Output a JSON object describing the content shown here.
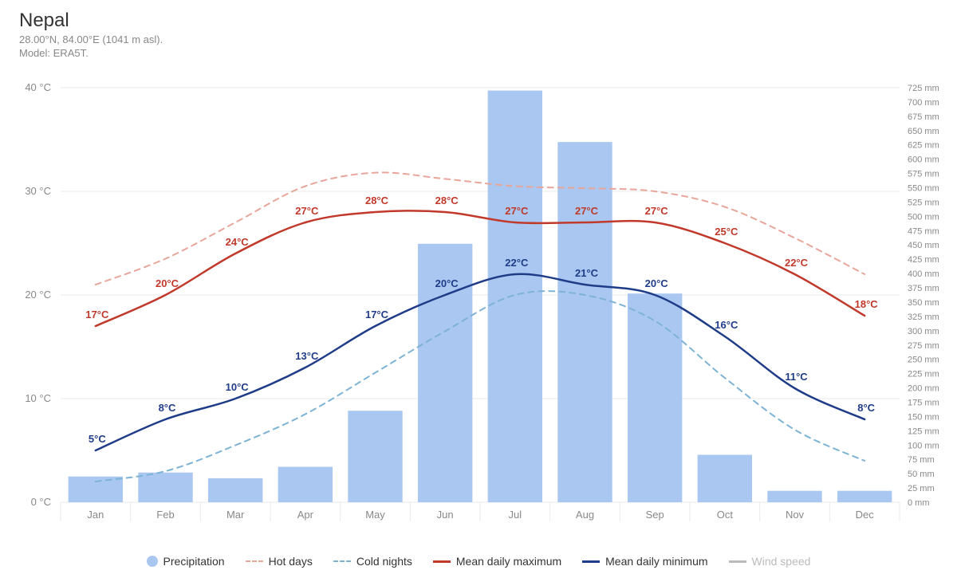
{
  "header": {
    "title": "Nepal",
    "subtitle1": "28.00°N, 84.00°E (1041 m asl).",
    "subtitle2": "Model: ERA5T."
  },
  "chart": {
    "type": "combo_bar_line",
    "months": [
      "Jan",
      "Feb",
      "Mar",
      "Apr",
      "May",
      "Jun",
      "Jul",
      "Aug",
      "Sep",
      "Oct",
      "Nov",
      "Dec"
    ],
    "left_axis": {
      "unit": "°C",
      "min": 0,
      "max": 40,
      "ticks": [
        0,
        10,
        20,
        30,
        40
      ],
      "labels": [
        "0 °C",
        "10 °C",
        "20 °C",
        "30 °C",
        "40 °C"
      ],
      "fontsize": 13,
      "color": "#888"
    },
    "right_axis": {
      "unit": "mm",
      "min": 0,
      "max": 725,
      "ticks": [
        0,
        25,
        50,
        75,
        100,
        125,
        150,
        175,
        200,
        225,
        250,
        275,
        300,
        325,
        350,
        375,
        400,
        425,
        450,
        475,
        500,
        525,
        550,
        575,
        600,
        625,
        650,
        675,
        700,
        725
      ],
      "labels": [
        "0 mm",
        "25 mm",
        "50 mm",
        "75 mm",
        "100 mm",
        "125 mm",
        "150 mm",
        "175 mm",
        "200 mm",
        "225 mm",
        "250 mm",
        "275 mm",
        "300 mm",
        "325 mm",
        "350 mm",
        "375 mm",
        "400 mm",
        "425 mm",
        "450 mm",
        "475 mm",
        "500 mm",
        "525 mm",
        "550 mm",
        "575 mm",
        "600 mm",
        "625 mm",
        "650 mm",
        "675 mm",
        "700 mm",
        "725 mm"
      ],
      "fontsize": 11,
      "color": "#888"
    },
    "grid_color": "#eaeaea",
    "x_divider_color": "#eaeaea",
    "x_label_fontsize": 13,
    "x_label_color": "#888",
    "precipitation": {
      "values_mm": [
        45,
        52,
        42,
        62,
        160,
        452,
        720,
        630,
        365,
        83,
        20,
        20
      ],
      "color": "#a9c7f0",
      "bar_width_ratio": 0.78
    },
    "mean_max": {
      "values_c": [
        17,
        20,
        24,
        27,
        28,
        28,
        27,
        27,
        27,
        25,
        22,
        18
      ],
      "color": "#c0392b",
      "width": 2.5,
      "label_fontsize": 13
    },
    "mean_min": {
      "values_c": [
        5,
        8,
        10,
        13,
        17,
        20,
        22,
        21,
        20,
        16,
        11,
        8
      ],
      "color": "#1f3c88",
      "width": 2.5,
      "label_fontsize": 13
    },
    "hot_days": {
      "values_c": [
        21,
        23.5,
        27,
        30.5,
        31.8,
        31.2,
        30.5,
        30.3,
        30,
        28.5,
        25.5,
        22
      ],
      "color": "#e8a59a",
      "width": 2,
      "dash": "7,6"
    },
    "cold_nights": {
      "values_c": [
        2,
        3,
        5.5,
        8.5,
        12.5,
        16.5,
        20,
        20,
        17.5,
        12,
        7,
        4
      ],
      "color": "#7db3d5",
      "width": 2,
      "dash": "7,6"
    },
    "wind_speed_color": "#bbbbbb"
  },
  "legend": {
    "precipitation": "Precipitation",
    "hot_days": "Hot days",
    "cold_nights": "Cold nights",
    "mean_max": "Mean daily maximum",
    "mean_min": "Mean daily minimum",
    "wind_speed": "Wind speed"
  }
}
